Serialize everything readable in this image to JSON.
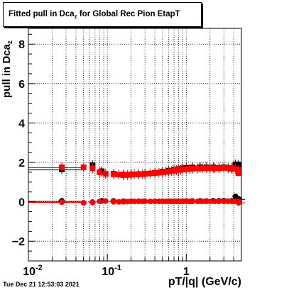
{
  "title": {
    "main": "Fitted pull in Dca",
    "sub": "z",
    "suffix": " for Global Rec Pion EtapT"
  },
  "footer": {
    "date": "Tue Dec 21 12:53:03 2021"
  },
  "chart_data": {
    "type": "scatter",
    "title": "Fitted pull in Dca_z for Global Rec Pion EtapT",
    "xlabel": "pT/|q| (GeV/c)",
    "ylabel": "pull in Dca_z",
    "xscale": "log",
    "xlim": [
      0.01,
      5.0
    ],
    "ylim": [
      -3.0,
      8.8
    ],
    "grid": true,
    "legend": "none",
    "x_tick_labels": [
      {
        "base": "10",
        "exp": "-2",
        "value": 0.01
      },
      {
        "base": "10",
        "exp": "-1",
        "value": 0.1
      },
      {
        "base": "1",
        "exp": "",
        "value": 1
      }
    ],
    "y_tick_labels": [
      "−2",
      "0",
      "2",
      "4",
      "6",
      "8"
    ],
    "y_tick_values": [
      -2,
      0,
      2,
      4,
      6,
      8
    ],
    "series": [
      {
        "color": "#000000",
        "role": "sigma",
        "x": [
          0.0265,
          0.065,
          0.085,
          0.12,
          0.16,
          0.2,
          0.25,
          0.3,
          0.4,
          0.5,
          0.6,
          0.7,
          0.8,
          0.9,
          1.0,
          1.2,
          1.5,
          1.8,
          2.2,
          2.6,
          3.0,
          3.4,
          3.8,
          4.2,
          4.6,
          5.0
        ],
        "y": [
          1.65,
          1.85,
          1.55,
          1.42,
          1.38,
          1.39,
          1.4,
          1.42,
          1.47,
          1.53,
          1.58,
          1.62,
          1.66,
          1.7,
          1.72,
          1.74,
          1.75,
          1.75,
          1.74,
          1.72,
          1.75,
          1.72,
          1.68,
          1.9,
          1.88,
          1.88
        ]
      },
      {
        "color": "#000000",
        "role": "mean",
        "x": [
          0.0265,
          0.065,
          0.085,
          0.12,
          0.16,
          0.2,
          0.25,
          0.3,
          0.4,
          0.5,
          0.6,
          0.7,
          0.8,
          0.9,
          1.0,
          1.2,
          1.5,
          1.8,
          2.2,
          2.6,
          3.0,
          3.4,
          3.8,
          4.2,
          4.6,
          5.0
        ],
        "y": [
          0.05,
          -0.02,
          0.05,
          0.04,
          0.03,
          0.03,
          0.03,
          0.03,
          0.03,
          0.03,
          0.03,
          0.03,
          0.03,
          0.03,
          0.04,
          0.04,
          0.04,
          0.04,
          0.05,
          0.05,
          0.06,
          0.03,
          0.05,
          0.28,
          0.15,
          0.12
        ]
      },
      {
        "color": "#ff0000",
        "role": "sigma",
        "x": [
          0.0265,
          0.05,
          0.065,
          0.08,
          0.095,
          0.12,
          0.14,
          0.16,
          0.18,
          0.2,
          0.22,
          0.25,
          0.28,
          0.3,
          0.35,
          0.4,
          0.45,
          0.5,
          0.55,
          0.6,
          0.65,
          0.7,
          0.75,
          0.8,
          0.85,
          0.9,
          1.0,
          1.1,
          1.2,
          1.4,
          1.6,
          1.8,
          2.0,
          2.3,
          2.6,
          3.0,
          3.4,
          3.8,
          4.2,
          4.6,
          5.0
        ],
        "y": [
          1.75,
          1.75,
          1.7,
          1.5,
          1.42,
          1.4,
          1.38,
          1.35,
          1.36,
          1.38,
          1.39,
          1.4,
          1.41,
          1.42,
          1.44,
          1.46,
          1.48,
          1.5,
          1.52,
          1.54,
          1.56,
          1.58,
          1.6,
          1.62,
          1.63,
          1.64,
          1.66,
          1.67,
          1.68,
          1.7,
          1.7,
          1.7,
          1.7,
          1.7,
          1.7,
          1.72,
          1.7,
          1.72,
          1.66,
          1.62,
          1.45
        ]
      },
      {
        "color": "#ff0000",
        "role": "mean",
        "x": [
          0.0265,
          0.05,
          0.065,
          0.08,
          0.095,
          0.12,
          0.14,
          0.16,
          0.18,
          0.2,
          0.22,
          0.25,
          0.28,
          0.3,
          0.35,
          0.4,
          0.45,
          0.5,
          0.55,
          0.6,
          0.65,
          0.7,
          0.75,
          0.8,
          0.85,
          0.9,
          1.0,
          1.1,
          1.2,
          1.4,
          1.6,
          1.8,
          2.0,
          2.3,
          2.6,
          3.0,
          3.4,
          3.8,
          4.2,
          4.6,
          5.0
        ],
        "y": [
          -0.02,
          -0.05,
          -0.04,
          0.02,
          0.04,
          0.0,
          0.0,
          0.0,
          0.01,
          0.02,
          0.02,
          0.02,
          0.02,
          0.02,
          0.02,
          0.02,
          0.02,
          0.02,
          0.02,
          0.02,
          0.02,
          0.02,
          0.02,
          0.02,
          0.02,
          0.02,
          0.02,
          0.02,
          0.02,
          0.02,
          0.02,
          0.02,
          0.02,
          0.02,
          0.02,
          0.02,
          0.02,
          0.02,
          0.02,
          0.02,
          -0.05
        ]
      }
    ]
  }
}
